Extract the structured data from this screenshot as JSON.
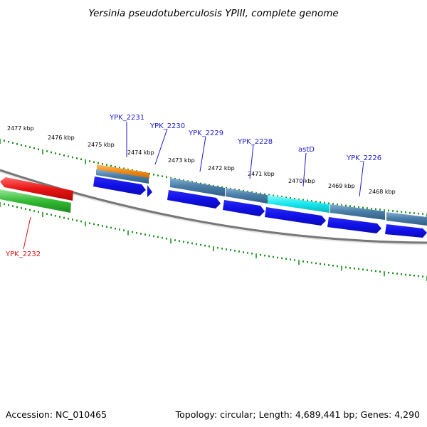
{
  "title": "Yersinia pseudotuberculosis YPIII, complete genome",
  "footer": {
    "accession": "Accession: NC_010465",
    "summary": "Topology: circular; Length: 4,689,441 bp; Genes: 4,290"
  },
  "ruler": {
    "labels": [
      "2477 kbp",
      "2476 kbp",
      "2475 kbp",
      "2474 kbp",
      "2473 kbp",
      "2472 kbp",
      "2471 kbp",
      "2470 kbp",
      "2469 kbp",
      "2468 kbp"
    ]
  },
  "gene_labels": [
    "YPK_2232",
    "YPK_2231",
    "YPK_2230",
    "YPK_2229",
    "YPK_2228",
    "astD",
    "YPK_2226"
  ],
  "colors": {
    "backbone": "#777777",
    "tick_green": "#1d8f1d",
    "label_blue": "#1a1acc",
    "label_red": "#dd1111",
    "cds_blue": "#1a1ad9",
    "gene_steel": "#4a7fa8",
    "gene_cyan": "#16e8ee",
    "gene_orange": "#f08a16",
    "gene_red": "#e81414",
    "gene_green": "#33bb33"
  }
}
